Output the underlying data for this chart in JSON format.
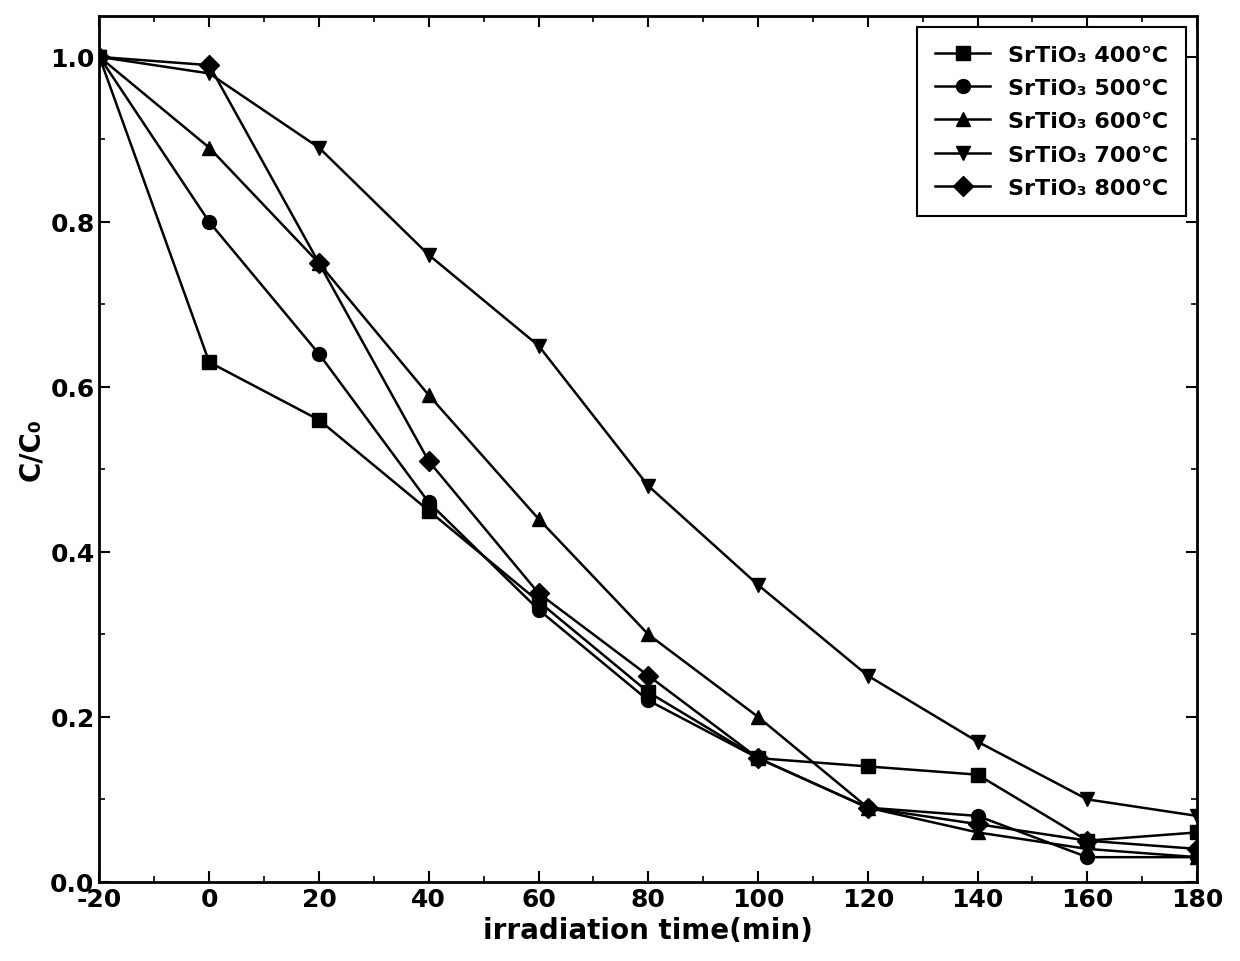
{
  "title": "",
  "xlabel": "irradiation time(min)",
  "ylabel": "C/C₀",
  "xlim": [
    -20,
    180
  ],
  "ylim": [
    0.0,
    1.05
  ],
  "xticks": [
    -20,
    0,
    20,
    40,
    60,
    80,
    100,
    120,
    140,
    160,
    180
  ],
  "yticks": [
    0.0,
    0.2,
    0.4,
    0.6,
    0.8,
    1.0
  ],
  "series": [
    {
      "label": "SrTiO₃ 400℃",
      "marker": "s",
      "x": [
        -20,
        0,
        20,
        40,
        60,
        80,
        100,
        120,
        140,
        160,
        180
      ],
      "y": [
        1.0,
        0.63,
        0.56,
        0.45,
        0.34,
        0.23,
        0.15,
        0.14,
        0.13,
        0.05,
        0.06
      ]
    },
    {
      "label": "SrTiO₃ 500℃",
      "marker": "o",
      "x": [
        -20,
        0,
        20,
        40,
        60,
        80,
        100,
        120,
        140,
        160,
        180
      ],
      "y": [
        1.0,
        0.8,
        0.64,
        0.46,
        0.33,
        0.22,
        0.15,
        0.09,
        0.08,
        0.03,
        0.03
      ]
    },
    {
      "label": "SrTiO₃ 600℃",
      "marker": "^",
      "x": [
        -20,
        0,
        20,
        40,
        60,
        80,
        100,
        120,
        140,
        160,
        180
      ],
      "y": [
        1.0,
        0.89,
        0.75,
        0.59,
        0.44,
        0.3,
        0.2,
        0.09,
        0.06,
        0.04,
        0.03
      ]
    },
    {
      "label": "SrTiO₃ 700℃",
      "marker": "v",
      "x": [
        -20,
        0,
        20,
        40,
        60,
        80,
        100,
        120,
        140,
        160,
        180
      ],
      "y": [
        1.0,
        0.98,
        0.89,
        0.76,
        0.65,
        0.48,
        0.36,
        0.25,
        0.17,
        0.1,
        0.08
      ]
    },
    {
      "label": "SrTiO₃ 800℃",
      "marker": "D",
      "x": [
        -20,
        0,
        20,
        40,
        60,
        80,
        100,
        120,
        140,
        160,
        180
      ],
      "y": [
        1.0,
        0.99,
        0.75,
        0.51,
        0.35,
        0.25,
        0.15,
        0.09,
        0.07,
        0.05,
        0.04
      ]
    }
  ],
  "line_color": "#000000",
  "marker_size": 10,
  "line_width": 1.8,
  "legend_fontsize": 16,
  "axis_label_fontsize": 20,
  "tick_fontsize": 18,
  "background_color": "#ffffff"
}
